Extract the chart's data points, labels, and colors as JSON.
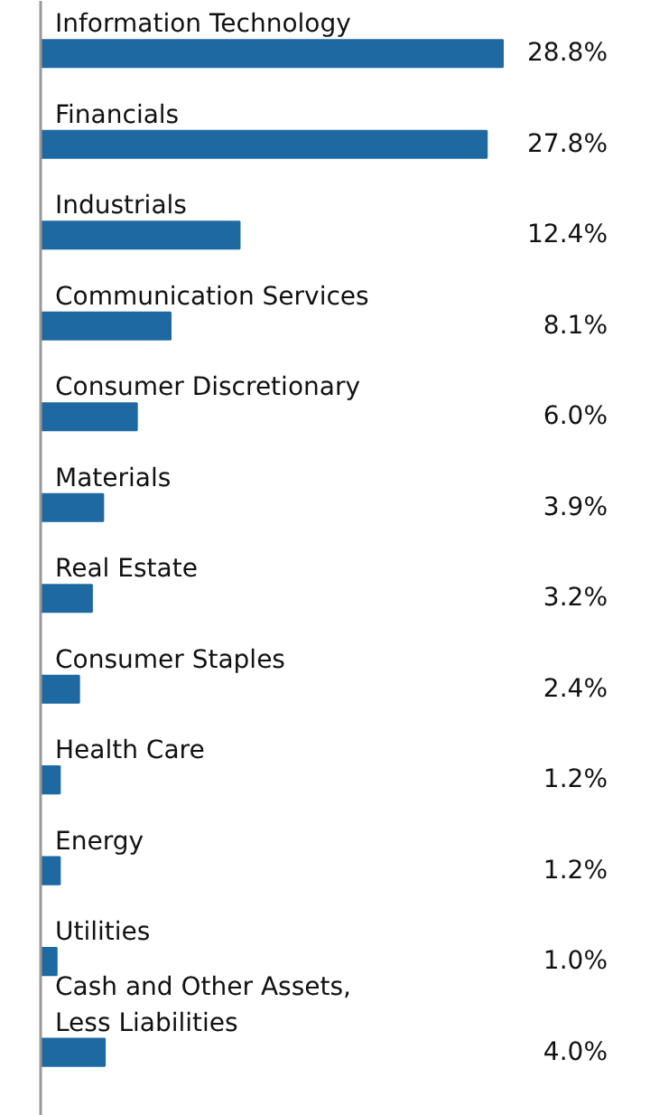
{
  "chart_data": {
    "type": "bar",
    "orientation": "horizontal",
    "categories": [
      "Information Technology",
      "Financials",
      "Industrials",
      "Communication Services",
      "Consumer Discretionary",
      "Materials",
      "Real Estate",
      "Consumer Staples",
      "Health Care",
      "Energy",
      "Utilities",
      "Cash and Other Assets,\nLess Liabilities"
    ],
    "values": [
      28.8,
      27.8,
      12.4,
      8.1,
      6.0,
      3.9,
      3.2,
      2.4,
      1.2,
      1.2,
      1.0,
      4.0
    ],
    "value_labels": [
      "28.8%",
      "27.8%",
      "12.4%",
      "8.1%",
      "6.0%",
      "3.9%",
      "3.2%",
      "2.4%",
      "1.2%",
      "1.2%",
      "1.0%",
      "4.0%"
    ],
    "color": "#1f69a3"
  }
}
